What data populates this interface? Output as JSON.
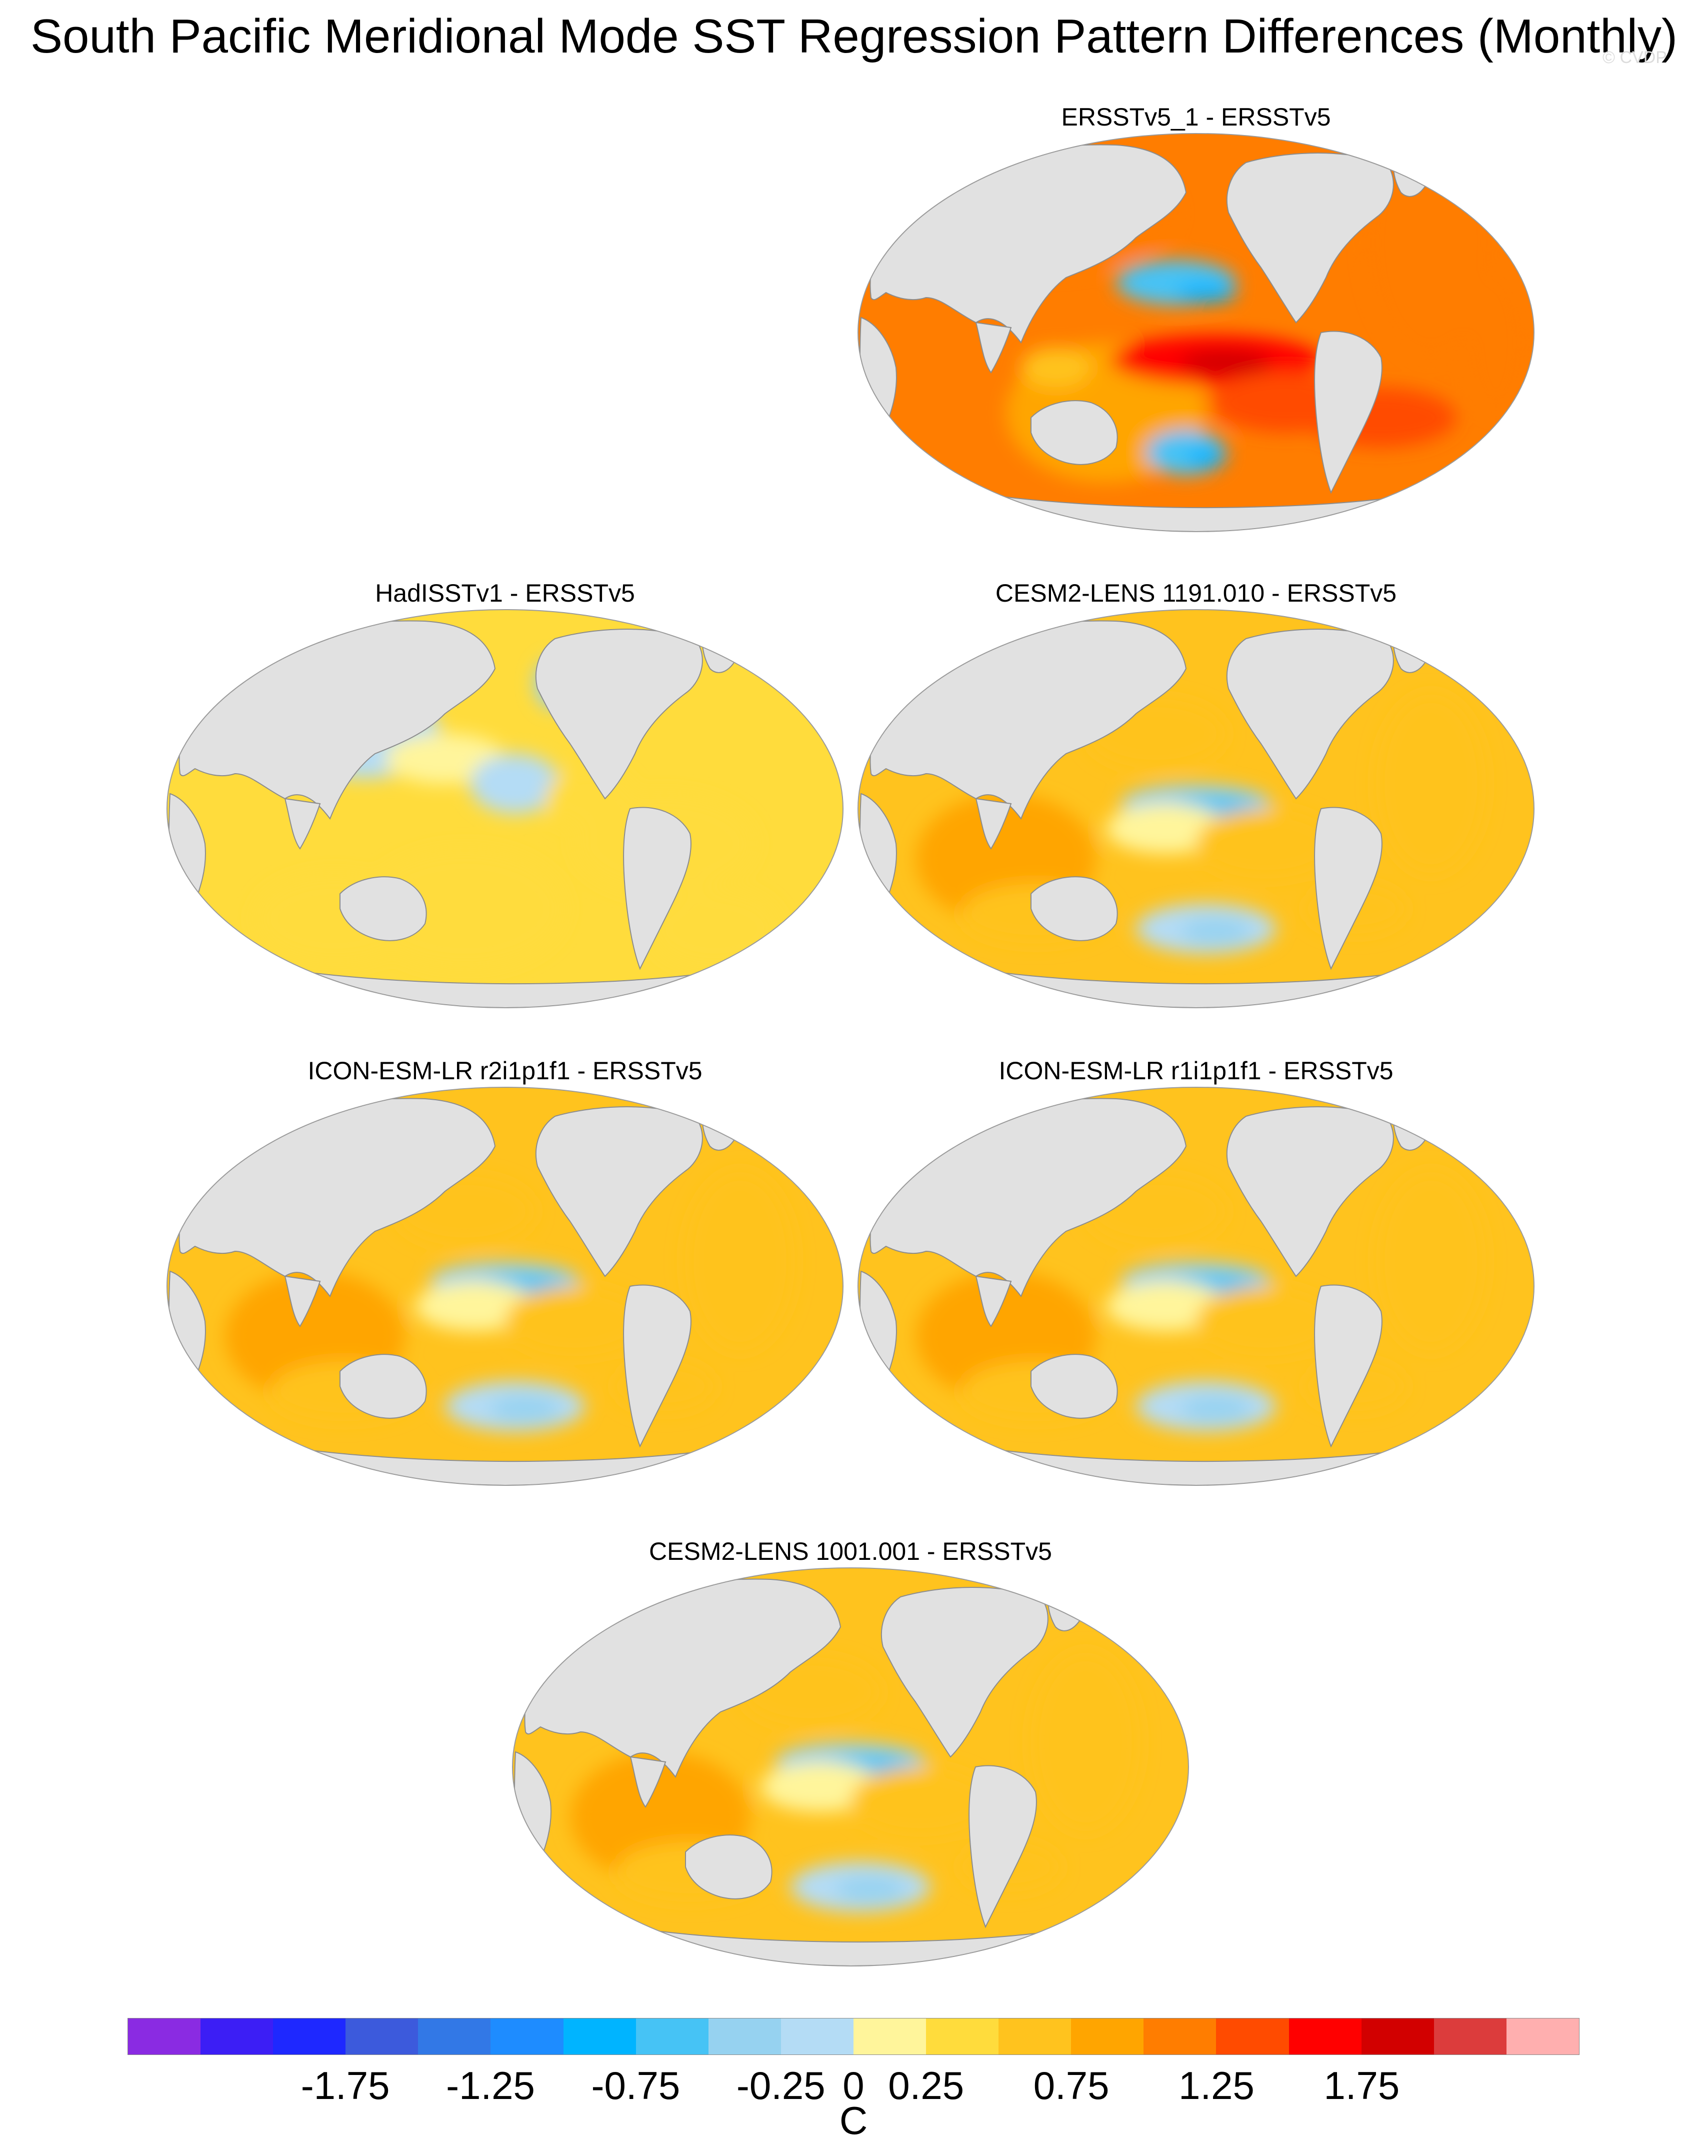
{
  "title": "South Pacific Meridional Mode SST Regression Pattern Differences (Monthly)",
  "watermark": "© CVDP",
  "panels": [
    {
      "title": "ERSSTv5_1 - ERSSTv5",
      "style": "strong",
      "mean_level": 14
    },
    {
      "title": "HadISSTv1 - ERSSTv5",
      "style": "weak",
      "mean_level": 11
    },
    {
      "title": "CESM2-LENS 1191.010 - ERSSTv5",
      "style": "model",
      "mean_level": 12
    },
    {
      "title": "ICON-ESM-LR r2i1p1f1 - ERSSTv5",
      "style": "model",
      "mean_level": 12
    },
    {
      "title": "ICON-ESM-LR r1i1p1f1 - ERSSTv5",
      "style": "model",
      "mean_level": 12
    },
    {
      "title": "CESM2-LENS 1001.001 - ERSSTv5",
      "style": "model",
      "mean_level": 12
    }
  ],
  "colorbar": {
    "units": "C",
    "colors": [
      "#8a2be2",
      "#3c1ef5",
      "#1e28ff",
      "#3c5adc",
      "#3278e6",
      "#1e8cff",
      "#00b4ff",
      "#46c3f5",
      "#96d2f0",
      "#b4dcf5",
      "#fff59b",
      "#ffdc3c",
      "#ffc31e",
      "#ffa500",
      "#ff7d00",
      "#ff4b00",
      "#ff0000",
      "#d20000",
      "#dc3c3c",
      "#ffafaf"
    ],
    "tick_labels": [
      "-1.75",
      "-1.25",
      "-0.75",
      "-0.25",
      "0",
      "0.25",
      "0.75",
      "1.25",
      "1.75"
    ]
  }
}
